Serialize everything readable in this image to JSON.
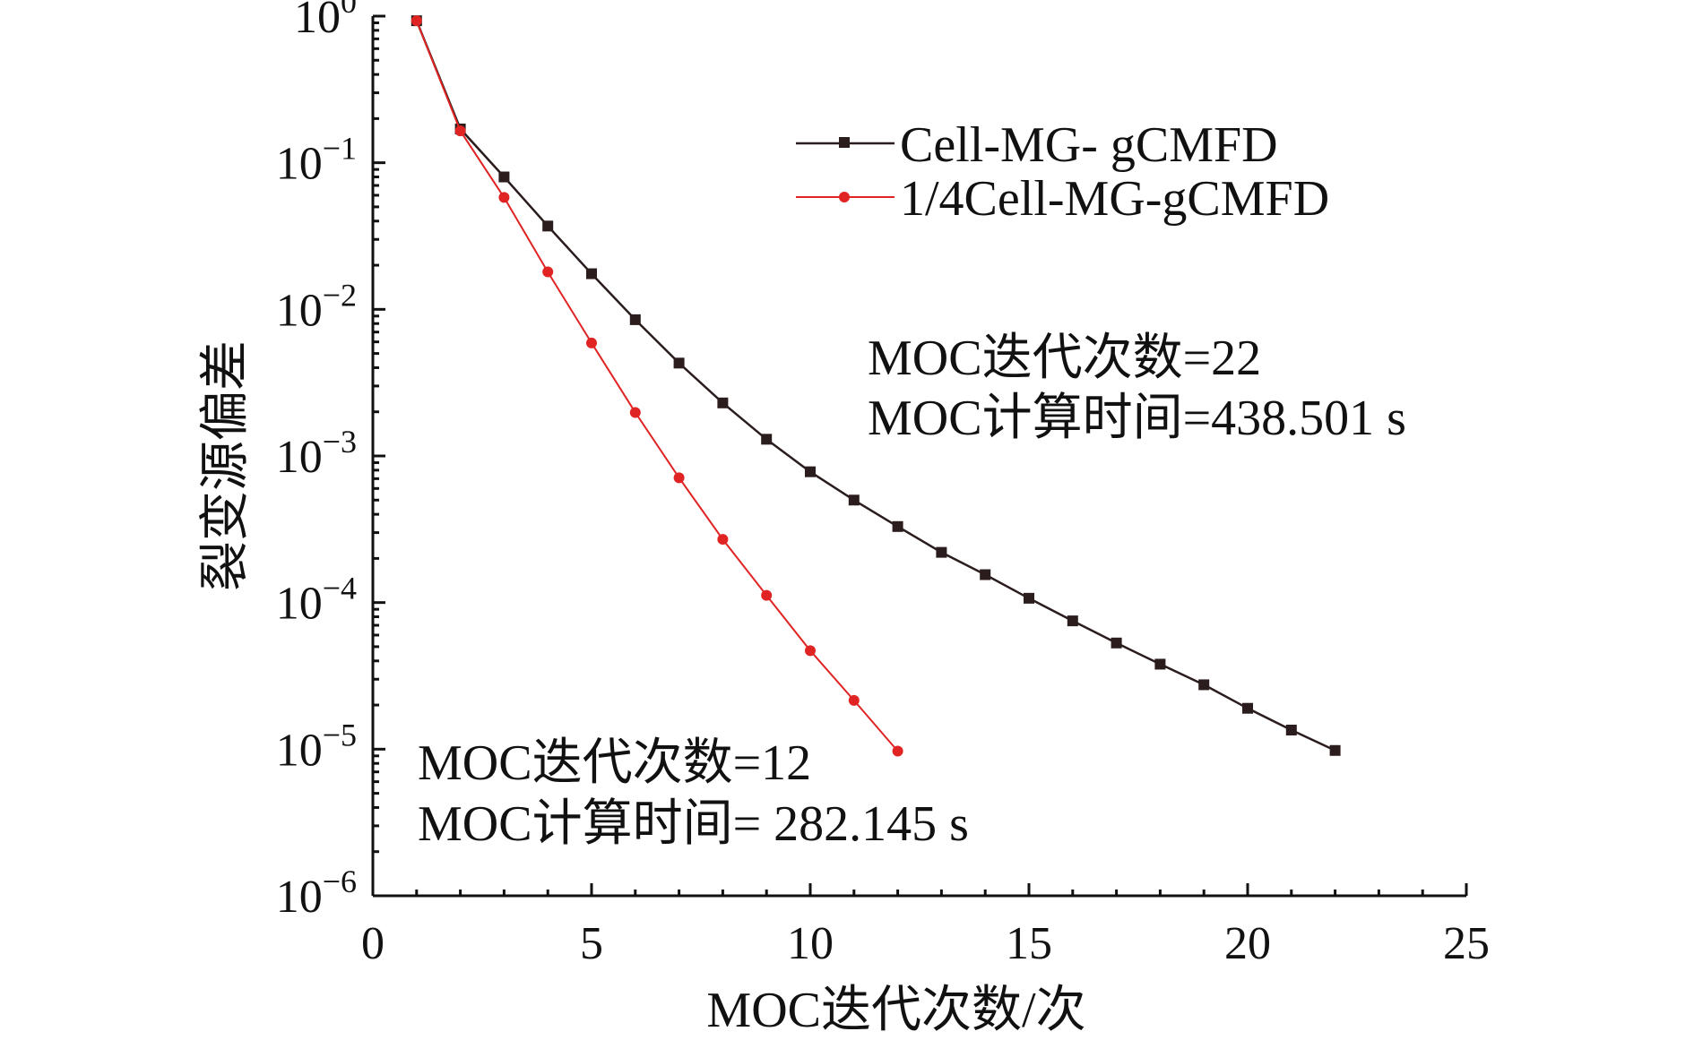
{
  "chart_data": {
    "type": "line",
    "title": "",
    "xlabel": "MOC迭代次数/次",
    "ylabel": "裂变源偏差",
    "xlim": [
      0,
      25
    ],
    "ylim": [
      1e-06,
      1
    ],
    "yscale": "log",
    "grid": false,
    "legend_position": "top-right",
    "x_ticks": [
      "0",
      "5",
      "10",
      "15",
      "20",
      "25"
    ],
    "y_ticks": [
      {
        "base": "10",
        "exp": "0"
      },
      {
        "base": "10",
        "exp": "−1"
      },
      {
        "base": "10",
        "exp": "−2"
      },
      {
        "base": "10",
        "exp": "−3"
      },
      {
        "base": "10",
        "exp": "−4"
      },
      {
        "base": "10",
        "exp": "−5"
      },
      {
        "base": "10",
        "exp": "−6"
      }
    ],
    "series": [
      {
        "name": "Cell-MG- gCMFD",
        "color": "#2b1d1d",
        "marker": "square",
        "x": [
          1,
          2,
          3,
          4,
          5,
          6,
          7,
          8,
          9,
          10,
          11,
          12,
          13,
          14,
          15,
          16,
          17,
          18,
          19,
          20,
          21,
          22
        ],
        "values": [
          0.93,
          0.17,
          0.08,
          0.037,
          0.0175,
          0.0085,
          0.0043,
          0.0023,
          0.0013,
          0.00078,
          0.0005,
          0.00033,
          0.00022,
          0.000155,
          0.000107,
          7.5e-05,
          5.3e-05,
          3.8e-05,
          2.75e-05,
          1.9e-05,
          1.35e-05,
          9.8e-06
        ]
      },
      {
        "name": "1/4Cell-MG-gCMFD",
        "color": "#e02424",
        "marker": "circle",
        "x": [
          1,
          2,
          3,
          4,
          5,
          6,
          7,
          8,
          9,
          10,
          11,
          12
        ],
        "values": [
          0.93,
          0.165,
          0.058,
          0.018,
          0.0059,
          0.00198,
          0.00071,
          0.00027,
          0.000112,
          4.7e-05,
          2.15e-05,
          9.7e-06
        ]
      }
    ],
    "annotations": [
      {
        "lines": [
          "MOC迭代次数=22",
          "MOC计算时间=438.501 s"
        ]
      },
      {
        "lines": [
          "MOC迭代次数=12",
          "MOC计算时间= 282.145 s"
        ]
      }
    ]
  }
}
